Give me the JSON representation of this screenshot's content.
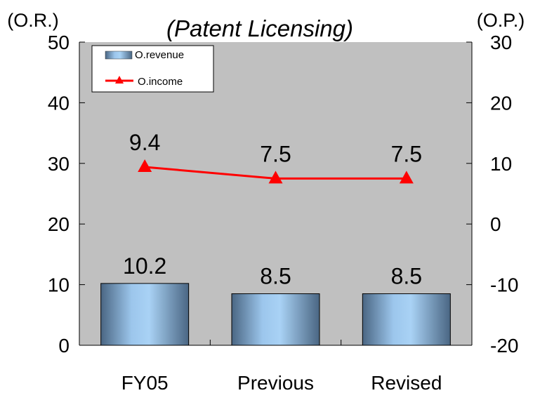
{
  "chart_data": {
    "type": "bar",
    "title": "(Patent Licensing)",
    "left_axis_label": "(O.R.)",
    "right_axis_label": "(O.P.)",
    "categories": [
      "FY05",
      "Previous",
      "Revised"
    ],
    "y_left": {
      "ylim": [
        0,
        50
      ],
      "ticks": [
        "0",
        "10",
        "20",
        "30",
        "40",
        "50"
      ]
    },
    "y_right": {
      "ylim": [
        -20,
        30
      ],
      "ticks": [
        "-20",
        "-10",
        "0",
        "10",
        "20",
        "30"
      ]
    },
    "series": [
      {
        "name": "O.revenue",
        "type": "bar",
        "axis": "left",
        "values": [
          10.2,
          8.5,
          8.5
        ],
        "labels": [
          "10.2",
          "8.5",
          "8.5"
        ]
      },
      {
        "name": "O.income",
        "type": "line",
        "axis": "right",
        "marker": "triangle",
        "values": [
          9.4,
          7.5,
          7.5
        ],
        "labels": [
          "9.4",
          "7.5",
          "7.5"
        ]
      }
    ],
    "legend_position": "top-left",
    "grid": false,
    "colors": {
      "plot_background": "#c0c0c0",
      "bar": "#7fa7d4",
      "bar_dark": "#4a6f96",
      "line": "#ff0000"
    }
  }
}
